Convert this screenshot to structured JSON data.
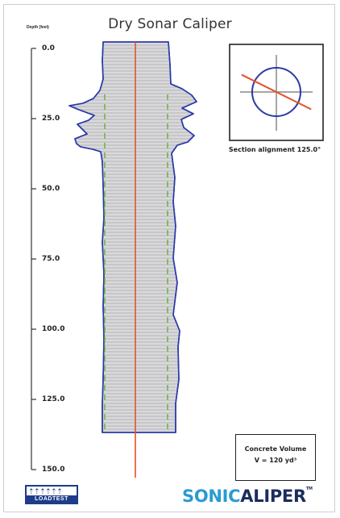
{
  "title": "Dry Sonar Caliper",
  "axis": {
    "label": "Depth (feet)",
    "ticks": [
      "0.0",
      "25.0",
      "50.0",
      "75.0",
      "100.0",
      "125.0",
      "150.0"
    ]
  },
  "section": {
    "caption": "Section alignment 125.0°",
    "alignment_deg": 125.0
  },
  "volume": {
    "title": "Concrete Volume",
    "value": "V = 120 yd³"
  },
  "logos": {
    "loadtest_text": "LOADTEST",
    "loadtest_figures": "⇡⇡⇡⇡⇡⇡",
    "brand_part1": "SONIC",
    "brand_part2": "ALIPER",
    "brand_tm": "TM"
  },
  "colors": {
    "profile_outline": "#2b3aa8",
    "profile_fill": "#d9d9dc",
    "center_line": "#e4522a",
    "guide_lines": "#66b33a",
    "circle": "#2b3aa8",
    "brand_blue": "#2a9bd0",
    "brand_navy": "#1b2d5b"
  }
}
